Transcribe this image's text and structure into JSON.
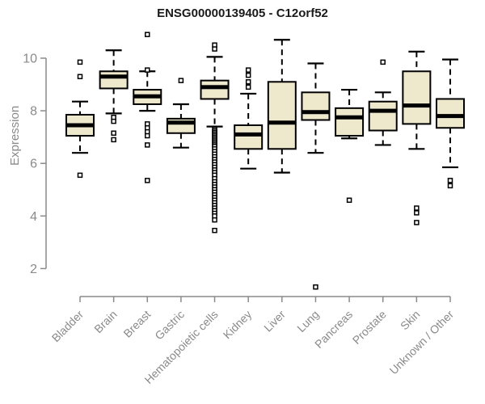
{
  "chart_data": {
    "type": "boxplot",
    "title": "ENSG00000139405 - C12orf52",
    "xlabel": "",
    "ylabel": "Expression",
    "y_ticks": [
      2,
      4,
      6,
      8,
      10
    ],
    "ylim": [
      2,
      10
    ],
    "grid": false,
    "legend": "none",
    "categories": [
      "Bladder",
      "Brain",
      "Breast",
      "Gastric",
      "Hematopoietic cells",
      "Kidney",
      "Liver",
      "Lung",
      "Pancreas",
      "Prostate",
      "Skin",
      "Unknown / Other"
    ],
    "boxes": [
      {
        "category": "Bladder",
        "whisker_low": 6.4,
        "q1": 7.05,
        "median": 7.45,
        "q3": 7.85,
        "whisker_high": 8.35,
        "outliers": [
          9.85,
          9.3,
          5.55
        ]
      },
      {
        "category": "Brain",
        "whisker_low": 7.9,
        "q1": 8.85,
        "median": 9.3,
        "q3": 9.5,
        "whisker_high": 10.3,
        "outliers": [
          7.75,
          7.6,
          7.15,
          6.9
        ]
      },
      {
        "category": "Breast",
        "whisker_low": 8.0,
        "q1": 8.25,
        "median": 8.55,
        "q3": 8.8,
        "whisker_high": 9.5,
        "outliers": [
          10.9,
          9.55,
          7.5,
          7.35,
          7.2,
          7.05,
          6.7,
          5.35
        ]
      },
      {
        "category": "Gastric",
        "whisker_low": 6.6,
        "q1": 7.15,
        "median": 7.55,
        "q3": 7.7,
        "whisker_high": 8.25,
        "outliers": [
          9.15
        ]
      },
      {
        "category": "Hematopoietic cells",
        "whisker_low": 7.4,
        "q1": 8.45,
        "median": 8.9,
        "q3": 9.15,
        "whisker_high": 10.05,
        "outliers": [
          10.5,
          10.35,
          7.3,
          7.24,
          7.18,
          7.12,
          7.06,
          7.0,
          6.94,
          6.88,
          6.82,
          6.76,
          6.7,
          6.64,
          6.55,
          6.45,
          6.35,
          6.25,
          6.15,
          6.05,
          5.95,
          5.85,
          5.75,
          5.65,
          5.55,
          5.42,
          5.3,
          5.2,
          5.1,
          5.0,
          4.9,
          4.8,
          4.7,
          4.6,
          4.5,
          4.4,
          4.3,
          4.2,
          4.1,
          4.0,
          3.85,
          3.45
        ]
      },
      {
        "category": "Kidney",
        "whisker_low": 5.8,
        "q1": 6.55,
        "median": 7.1,
        "q3": 7.45,
        "whisker_high": 8.65,
        "outliers": [
          9.55,
          9.35,
          9.1,
          8.9
        ]
      },
      {
        "category": "Liver",
        "whisker_low": 5.65,
        "q1": 6.55,
        "median": 7.55,
        "q3": 9.1,
        "whisker_high": 10.7,
        "outliers": []
      },
      {
        "category": "Lung",
        "whisker_low": 6.4,
        "q1": 7.65,
        "median": 7.95,
        "q3": 8.7,
        "whisker_high": 9.8,
        "outliers": [
          1.3
        ]
      },
      {
        "category": "Pancreas",
        "whisker_low": 6.95,
        "q1": 7.05,
        "median": 7.75,
        "q3": 8.1,
        "whisker_high": 8.8,
        "outliers": [
          4.6
        ]
      },
      {
        "category": "Prostate",
        "whisker_low": 6.7,
        "q1": 7.25,
        "median": 8.0,
        "q3": 8.35,
        "whisker_high": 8.7,
        "outliers": [
          9.85
        ]
      },
      {
        "category": "Skin",
        "whisker_low": 6.55,
        "q1": 7.5,
        "median": 8.2,
        "q3": 9.5,
        "whisker_high": 10.25,
        "outliers": [
          4.3,
          4.12,
          3.75
        ]
      },
      {
        "category": "Unknown / Other",
        "whisker_low": 5.85,
        "q1": 7.35,
        "median": 7.8,
        "q3": 8.45,
        "whisker_high": 9.95,
        "outliers": [
          5.35,
          5.15
        ]
      }
    ],
    "colors": {
      "box_fill": "#EEE8CD",
      "box_border": "#000000",
      "median": "#000000",
      "outlier_stroke": "#000000",
      "outlier_fill": "#ffffff",
      "axis": "#8a8a8a",
      "title": "#1a1a1a",
      "background": "#ffffff"
    }
  }
}
